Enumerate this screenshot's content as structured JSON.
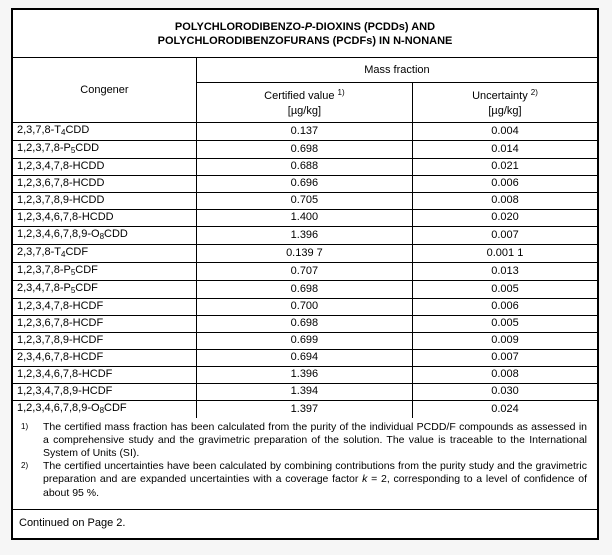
{
  "title": {
    "line1_pre": "POLYCHLORODIBENZO-",
    "line1_italic": "P",
    "line1_post": "-DIOXINS (PCDDs) AND",
    "line2": "POLYCHLORODIBENZOFURANS (PCDFs) IN N-NONANE"
  },
  "table": {
    "congener_header": "Congener",
    "mass_fraction_header": "Mass fraction",
    "certified_label": "Certified value",
    "certified_sup": "1)",
    "certified_unit": "[µg/kg]",
    "uncertainty_label": "Uncertainty",
    "uncertainty_sup": "2)",
    "uncertainty_unit": "[µg/kg]",
    "rows": [
      {
        "congener_prefix": "2,3,7,8-T",
        "congener_sub": "4",
        "congener_suffix": "CDD",
        "certified": "0.137",
        "uncertainty": "0.004"
      },
      {
        "congener_prefix": "1,2,3,7,8-P",
        "congener_sub": "5",
        "congener_suffix": "CDD",
        "certified": "0.698",
        "uncertainty": "0.014"
      },
      {
        "congener_prefix": "1,2,3,4,7,8-HCDD",
        "congener_sub": "",
        "congener_suffix": "",
        "certified": "0.688",
        "uncertainty": "0.021"
      },
      {
        "congener_prefix": "1,2,3,6,7,8-HCDD",
        "congener_sub": "",
        "congener_suffix": "",
        "certified": "0.696",
        "uncertainty": "0.006"
      },
      {
        "congener_prefix": "1,2,3,7,8,9-HCDD",
        "congener_sub": "",
        "congener_suffix": "",
        "certified": "0.705",
        "uncertainty": "0.008"
      },
      {
        "congener_prefix": "1,2,3,4,6,7,8-HCDD",
        "congener_sub": "",
        "congener_suffix": "",
        "certified": "1.400",
        "uncertainty": "0.020"
      },
      {
        "congener_prefix": "1,2,3,4,6,7,8,9-O",
        "congener_sub": "8",
        "congener_suffix": "CDD",
        "certified": "1.396",
        "uncertainty": "0.007"
      },
      {
        "congener_prefix": "2,3,7,8-T",
        "congener_sub": "4",
        "congener_suffix": "CDF",
        "certified": "0.139 7",
        "uncertainty": "0.001 1"
      },
      {
        "congener_prefix": "1,2,3,7,8-P",
        "congener_sub": "5",
        "congener_suffix": "CDF",
        "certified": "0.707",
        "uncertainty": "0.013"
      },
      {
        "congener_prefix": "2,3,4,7,8-P",
        "congener_sub": "5",
        "congener_suffix": "CDF",
        "certified": "0.698",
        "uncertainty": "0.005"
      },
      {
        "congener_prefix": "1,2,3,4,7,8-HCDF",
        "congener_sub": "",
        "congener_suffix": "",
        "certified": "0.700",
        "uncertainty": "0.006"
      },
      {
        "congener_prefix": "1,2,3,6,7,8-HCDF",
        "congener_sub": "",
        "congener_suffix": "",
        "certified": "0.698",
        "uncertainty": "0.005"
      },
      {
        "congener_prefix": "1,2,3,7,8,9-HCDF",
        "congener_sub": "",
        "congener_suffix": "",
        "certified": "0.699",
        "uncertainty": "0.009"
      },
      {
        "congener_prefix": "2,3,4,6,7,8-HCDF",
        "congener_sub": "",
        "congener_suffix": "",
        "certified": "0.694",
        "uncertainty": "0.007"
      },
      {
        "congener_prefix": "1,2,3,4,6,7,8-HCDF",
        "congener_sub": "",
        "congener_suffix": "",
        "certified": "1.396",
        "uncertainty": "0.008"
      },
      {
        "congener_prefix": "1,2,3,4,7,8,9-HCDF",
        "congener_sub": "",
        "congener_suffix": "",
        "certified": "1.394",
        "uncertainty": "0.030"
      },
      {
        "congener_prefix": "1,2,3,4,6,7,8,9-O",
        "congener_sub": "8",
        "congener_suffix": "CDF",
        "certified": "1.397",
        "uncertainty": "0.024"
      }
    ]
  },
  "footnotes": [
    {
      "marker": "1)",
      "text_pre": "The certified mass fraction has been calculated from the purity of the individual PCDD/F compounds as assessed in a comprehensive study and the gravimetric preparation of the solution. The value is traceable to the International System of Units (SI).",
      "text_italic": "",
      "text_post": ""
    },
    {
      "marker": "2)",
      "text_pre": "The certified uncertainties have been calculated by combining contributions from the purity study and the gravimetric preparation and are expanded uncertainties with a coverage factor ",
      "text_italic": "k",
      "text_post": " = 2, corresponding to a level of confidence of about 95 %."
    }
  ],
  "page": {
    "continued": "Continued on Page 2."
  }
}
